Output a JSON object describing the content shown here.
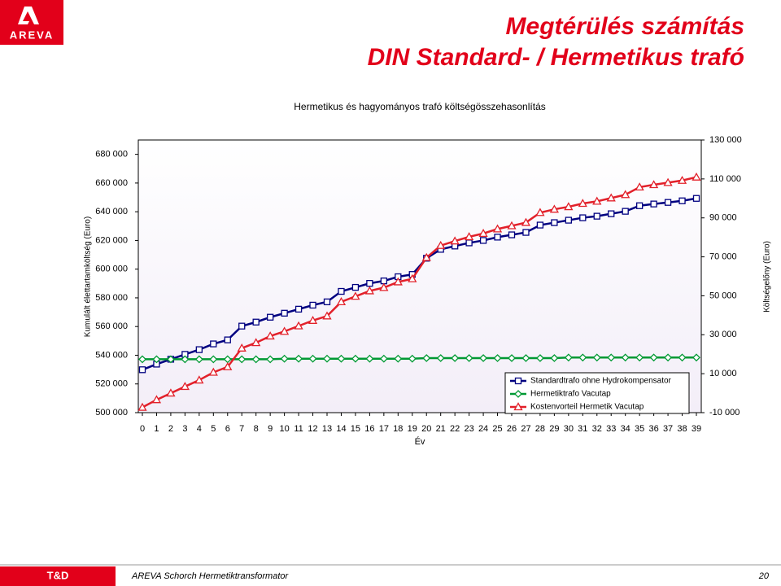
{
  "slide": {
    "logo": "AREVA",
    "title_lines": [
      "Megtérülés számítás",
      "DIN Standard- / Hermetikus trafó"
    ],
    "footer_left": "T&D",
    "footer_text": "AREVA Schorch Hermetiktransformator",
    "page_number": "20"
  },
  "chart_data": {
    "type": "line",
    "title": "Hermetikus és hagyományos trafó költségösszehasonlítás",
    "x_label": "Év",
    "y_label": "Kumulált élettartamköltség (Euro)",
    "y2_label": "Költségelőny (Euro)",
    "x": [
      0,
      1,
      2,
      3,
      4,
      5,
      6,
      7,
      8,
      9,
      10,
      11,
      12,
      13,
      14,
      15,
      16,
      17,
      18,
      19,
      20,
      21,
      22,
      23,
      24,
      25,
      26,
      27,
      28,
      29,
      30,
      31,
      32,
      33,
      34,
      35,
      36,
      37,
      38,
      39
    ],
    "xlim": [
      0,
      39
    ],
    "ylim": [
      500000,
      690000
    ],
    "yticks": [
      {
        "value": 500000,
        "label": "500 000"
      },
      {
        "value": 520000,
        "label": "520 000"
      },
      {
        "value": 540000,
        "label": "540 000"
      },
      {
        "value": 560000,
        "label": "560 000"
      },
      {
        "value": 580000,
        "label": "580 000"
      },
      {
        "value": 600000,
        "label": "600 000"
      },
      {
        "value": 620000,
        "label": "620 000"
      },
      {
        "value": 640000,
        "label": "640 000"
      },
      {
        "value": 660000,
        "label": "660 000"
      },
      {
        "value": 680000,
        "label": "680 000"
      }
    ],
    "y2lim": [
      -10000,
      130000
    ],
    "y2ticks": [
      {
        "value": -10000,
        "label": "-10 000"
      },
      {
        "value": 10000,
        "label": "10 000"
      },
      {
        "value": 30000,
        "label": "30 000"
      },
      {
        "value": 50000,
        "label": "50 000"
      },
      {
        "value": 70000,
        "label": "70 000"
      },
      {
        "value": 90000,
        "label": "90 000"
      },
      {
        "value": 110000,
        "label": "110 000"
      },
      {
        "value": 130000,
        "label": "130 000"
      }
    ],
    "legend": "lower right",
    "series": [
      {
        "name": "Standardtrafo ohne Hydrokompensator",
        "color": "#000080",
        "marker": "square",
        "values": [
          529900,
          533800,
          537200,
          540600,
          543900,
          547900,
          550700,
          560300,
          563100,
          566500,
          569300,
          572100,
          574900,
          577200,
          584500,
          587300,
          590100,
          591800,
          594700,
          596300,
          607600,
          613800,
          616100,
          618300,
          620000,
          622300,
          623900,
          625600,
          630700,
          632400,
          634100,
          635800,
          636900,
          638600,
          640300,
          644200,
          645400,
          646500,
          647600,
          649300
        ]
      },
      {
        "name": "Hermetiktrafo Vacutap",
        "color": "#009933",
        "marker": "diamond",
        "values": [
          537200,
          537200,
          537200,
          537200,
          537200,
          537200,
          537200,
          537200,
          537200,
          537200,
          537600,
          537600,
          537600,
          537600,
          537600,
          537600,
          537600,
          537600,
          537600,
          537600,
          538000,
          538000,
          538000,
          538000,
          538000,
          538000,
          538000,
          538000,
          538000,
          538000,
          538400,
          538400,
          538400,
          538400,
          538400,
          538400,
          538400,
          538400,
          538400,
          538400
        ]
      },
      {
        "name": "Kostenvorteil Hermetik Vacutap",
        "color": "#e2202a",
        "marker": "triangle",
        "axis": "y2",
        "values": [
          -7300,
          -3400,
          0,
          3400,
          6700,
          10700,
          13500,
          23100,
          25900,
          29300,
          31700,
          34500,
          37300,
          39600,
          46900,
          49700,
          52500,
          54200,
          57100,
          58700,
          69600,
          75800,
          78100,
          80300,
          82000,
          84300,
          85900,
          87600,
          92700,
          94400,
          95700,
          97400,
          98500,
          100200,
          101900,
          105800,
          107000,
          108100,
          109200,
          110900
        ]
      }
    ]
  }
}
